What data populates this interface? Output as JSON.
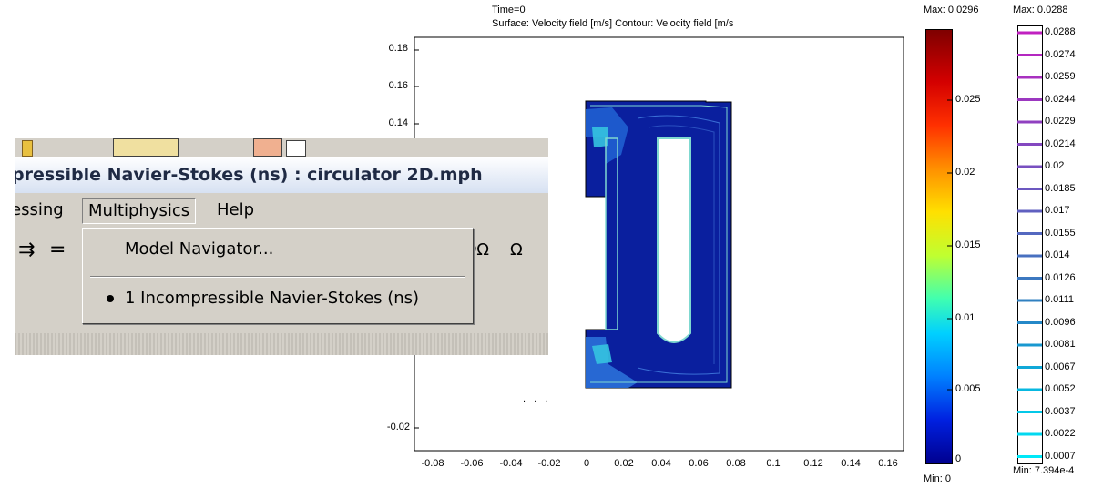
{
  "plot": {
    "title_line1": "Time=0",
    "title_line2": "Surface: Velocity field [m/s]   Contour: Velocity field [m/s",
    "y_ticks": [
      "0.18",
      "0.16",
      "0.14",
      "-0.02"
    ],
    "x_ticks": [
      "-0.08",
      "-0.06",
      "-0.04",
      "-0.02",
      "0",
      "0.02",
      "0.04",
      "0.06",
      "0.08",
      "0.1",
      "0.12",
      "0.14",
      "0.16"
    ],
    "dots": ". . ."
  },
  "surface_colorbar": {
    "max_label": "Max: 0.0296",
    "min_label": "Min: 0",
    "ticks": [
      "0.025",
      "0.02",
      "0.015",
      "0.01",
      "0.005",
      "0"
    ]
  },
  "contour_legend": {
    "max_label": "Max: 0.0288",
    "min_label": "Min: 7.394e-4",
    "levels": [
      "0.0288",
      "0.0274",
      "0.0259",
      "0.0244",
      "0.0229",
      "0.0214",
      "0.02",
      "0.0185",
      "0.017",
      "0.0155",
      "0.014",
      "0.0126",
      "0.0111",
      "0.0096",
      "0.0081",
      "0.0067",
      "0.0052",
      "0.0037",
      "0.0022",
      "0.0007"
    ],
    "colors": [
      "#c020c0",
      "#b428c0",
      "#a830c0",
      "#9c38c0",
      "#9040c0",
      "#8448c0",
      "#7850c0",
      "#6c58c0",
      "#6060c0",
      "#5468c0",
      "#4870c0",
      "#3c78c0",
      "#3080c0",
      "#2488c8",
      "#1898d0",
      "#10a8d8",
      "#08b8e0",
      "#04c8e8",
      "#02d8f0",
      "#00e8f8"
    ]
  },
  "app_window": {
    "title": "pressible Navier-Stokes (ns) : circulator 2D.mph",
    "menu": [
      "essing",
      "Multiphysics",
      "Help"
    ],
    "active_menu": "Multiphysics",
    "toolbar_symbols": [
      "⇉",
      "=",
      "∂Ω",
      "Ω"
    ],
    "dropdown": {
      "item1": "Model Navigator...",
      "item2": "1 Incompressible Navier-Stokes (ns)"
    }
  },
  "colors": {
    "window_bg": "#d4d0c8",
    "title_text": "#1f2a44",
    "field_blue": "#0a1f9e",
    "contour": "#7fd8d0"
  }
}
